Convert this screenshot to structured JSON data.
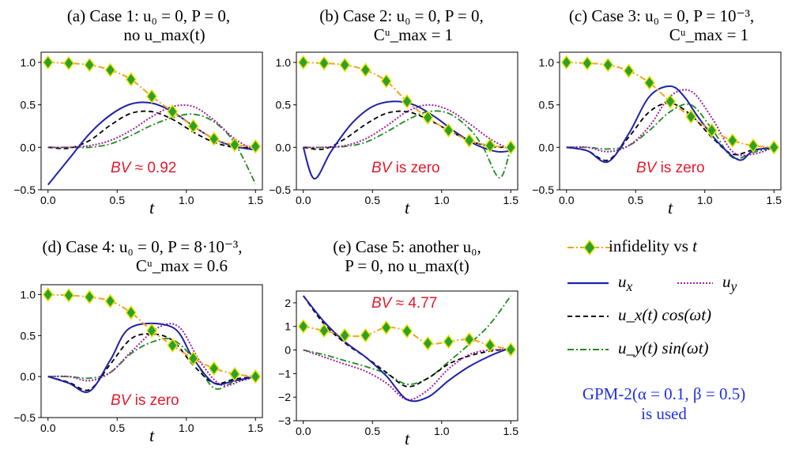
{
  "colors": {
    "infidelity_line": "#f5a21b",
    "infidelity_marker_fill": "#2ca02c",
    "infidelity_marker_stroke": "#e6e600",
    "ux": "#1f22a5",
    "uy": "#a020a0",
    "ux_cos": "#000000",
    "uy_sin": "#1e8c1e",
    "bv_text": "#e6192b",
    "note_text": "#1f2fe6"
  },
  "legend": {
    "infidelity": "infidelity vs",
    "infidelity_var": "t",
    "ux": "u",
    "ux_sub": "x",
    "uy": "u",
    "uy_sub": "y",
    "ux_cos": "u_x(t) cos(ωt)",
    "uy_sin": "u_y(t) sin(ωt)"
  },
  "note": {
    "line1": "GPM-2(α = 0.1, β = 0.5)",
    "line2": "is used"
  },
  "panels": [
    {
      "title_line1": "(a) Case 1: u₀ = 0,  P = 0,",
      "title_line2": "no u_max(t)",
      "bv_label": "BV",
      "bv_text": " ≈ 0.92"
    },
    {
      "title_line1": "(b) Case 2: u₀ = 0,  P = 0,",
      "title_line2": "Cᵘ_max = 1",
      "bv_label": "BV",
      "bv_text": " is zero"
    },
    {
      "title_line1": "(c) Case 3: u₀ = 0,  P = 10⁻³,",
      "title_line2": "Cᵘ_max = 1",
      "bv_label": "BV",
      "bv_text": " is zero"
    },
    {
      "title_line1": "(d) Case 4: u₀ = 0,  P = 8·10⁻³,",
      "title_line2": "Cᵘ_max = 0.6",
      "bv_label": "BV",
      "bv_text": " is zero"
    },
    {
      "title_line1": "(e) Case 5: another u₀,",
      "title_line2": "P = 0, no u_max(t)",
      "bv_label": "BV",
      "bv_text": " ≈ 4.77"
    }
  ],
  "chart_data": [
    {
      "type": "line",
      "xlabel": "t",
      "xlim": [
        -0.05,
        1.55
      ],
      "ylim": [
        -0.5,
        1.12
      ],
      "xticks": [
        0.0,
        0.5,
        1.0,
        1.5
      ],
      "xtick_labels": [
        "0.0",
        "0.5",
        "1.0",
        "1.5"
      ],
      "yticks": [
        -0.5,
        0.0,
        0.5,
        1.0
      ],
      "ytick_labels": [
        "−0.5",
        "0.0",
        "0.5",
        "1.0"
      ],
      "series": [
        {
          "name": "infidelity vs t",
          "x": [
            0,
            0.15,
            0.3,
            0.45,
            0.6,
            0.75,
            0.9,
            1.05,
            1.2,
            1.35,
            1.5
          ],
          "y": [
            1.0,
            0.99,
            0.97,
            0.91,
            0.8,
            0.6,
            0.42,
            0.25,
            0.1,
            0.03,
            0.01
          ]
        },
        {
          "name": "u_x",
          "x": [
            0,
            0.15,
            0.3,
            0.45,
            0.6,
            0.75,
            0.9,
            1.05,
            1.2,
            1.35,
            1.5
          ],
          "y": [
            -0.44,
            -0.14,
            0.16,
            0.38,
            0.51,
            0.52,
            0.42,
            0.25,
            0.1,
            0.01,
            -0.03
          ]
        },
        {
          "name": "u_y",
          "x": [
            0,
            0.15,
            0.3,
            0.45,
            0.6,
            0.75,
            0.9,
            1.05,
            1.2,
            1.35,
            1.5
          ],
          "y": [
            0.0,
            0.0,
            0.02,
            0.08,
            0.2,
            0.36,
            0.48,
            0.48,
            0.32,
            0.1,
            -0.04
          ]
        },
        {
          "name": "u_x(t) cos(ωt)",
          "x": [
            0,
            0.15,
            0.3,
            0.45,
            0.6,
            0.75,
            0.9,
            1.05,
            1.2,
            1.35,
            1.5
          ],
          "y": [
            0.0,
            -0.01,
            0.08,
            0.26,
            0.4,
            0.42,
            0.33,
            0.18,
            0.06,
            0.0,
            0.0
          ]
        },
        {
          "name": "u_y(t) sin(ωt)",
          "x": [
            0,
            0.15,
            0.3,
            0.45,
            0.6,
            0.75,
            0.9,
            1.05,
            1.2,
            1.35,
            1.5
          ],
          "y": [
            0.0,
            0.0,
            0.0,
            0.04,
            0.14,
            0.26,
            0.35,
            0.39,
            0.3,
            0.05,
            -0.43
          ]
        }
      ]
    },
    {
      "type": "line",
      "xlabel": "t",
      "xlim": [
        -0.05,
        1.55
      ],
      "ylim": [
        -0.5,
        1.12
      ],
      "xticks": [
        0.0,
        0.5,
        1.0,
        1.5
      ],
      "xtick_labels": [
        "0.0",
        "0.5",
        "1.0",
        "1.5"
      ],
      "yticks": [
        -0.5,
        0.0,
        0.5,
        1.0
      ],
      "ytick_labels": [
        "−0.5",
        "0.0",
        "0.5",
        "1.0"
      ],
      "series": [
        {
          "name": "infidelity vs t",
          "x": [
            0,
            0.15,
            0.3,
            0.45,
            0.6,
            0.75,
            0.9,
            1.05,
            1.2,
            1.35,
            1.5
          ],
          "y": [
            1.0,
            0.99,
            0.97,
            0.91,
            0.78,
            0.54,
            0.35,
            0.2,
            0.08,
            0.02,
            0.0
          ]
        },
        {
          "name": "u_x",
          "x": [
            0,
            0.08,
            0.2,
            0.35,
            0.5,
            0.65,
            0.8,
            0.95,
            1.1,
            1.25,
            1.4,
            1.5
          ],
          "y": [
            0.0,
            -0.37,
            -0.05,
            0.28,
            0.48,
            0.54,
            0.5,
            0.36,
            0.18,
            0.03,
            -0.05,
            -0.04
          ]
        },
        {
          "name": "u_y",
          "x": [
            0,
            0.15,
            0.3,
            0.45,
            0.6,
            0.75,
            0.9,
            1.05,
            1.2,
            1.35,
            1.5
          ],
          "y": [
            0.0,
            0.0,
            0.02,
            0.1,
            0.25,
            0.42,
            0.5,
            0.44,
            0.28,
            0.1,
            -0.03
          ]
        },
        {
          "name": "u_x(t) cos(ωt)",
          "x": [
            0,
            0.15,
            0.3,
            0.45,
            0.6,
            0.75,
            0.9,
            1.05,
            1.2,
            1.35,
            1.5
          ],
          "y": [
            0.0,
            -0.02,
            0.1,
            0.27,
            0.4,
            0.42,
            0.33,
            0.2,
            0.08,
            0.01,
            0.0
          ]
        },
        {
          "name": "u_y(t) sin(ωt)",
          "x": [
            0,
            0.15,
            0.3,
            0.45,
            0.6,
            0.75,
            0.9,
            1.05,
            1.2,
            1.3,
            1.42,
            1.5
          ],
          "y": [
            0.0,
            0.0,
            0.01,
            0.06,
            0.18,
            0.32,
            0.42,
            0.4,
            0.22,
            0.0,
            -0.36,
            0.0
          ]
        }
      ]
    },
    {
      "type": "line",
      "xlabel": "t",
      "xlim": [
        -0.05,
        1.55
      ],
      "ylim": [
        -0.5,
        1.12
      ],
      "xticks": [
        0.0,
        0.5,
        1.0,
        1.5
      ],
      "xtick_labels": [
        "0.0",
        "0.5",
        "1.0",
        "1.5"
      ],
      "yticks": [
        -0.5,
        0.0,
        0.5,
        1.0
      ],
      "ytick_labels": [
        "−0.5",
        "0.0",
        "0.5",
        "1.0"
      ],
      "series": [
        {
          "name": "infidelity vs t",
          "x": [
            0,
            0.15,
            0.3,
            0.45,
            0.6,
            0.75,
            0.9,
            1.05,
            1.2,
            1.35,
            1.5
          ],
          "y": [
            1.0,
            0.99,
            0.97,
            0.9,
            0.76,
            0.54,
            0.36,
            0.2,
            0.08,
            0.02,
            0.0
          ]
        },
        {
          "name": "u_x",
          "x": [
            0,
            0.15,
            0.3,
            0.45,
            0.6,
            0.75,
            0.85,
            0.95,
            1.1,
            1.25,
            1.35,
            1.5
          ],
          "y": [
            0.0,
            -0.04,
            -0.17,
            0.16,
            0.6,
            0.72,
            0.6,
            0.36,
            0.05,
            -0.15,
            -0.04,
            0.0
          ]
        },
        {
          "name": "u_y",
          "x": [
            0,
            0.15,
            0.3,
            0.45,
            0.6,
            0.75,
            0.9,
            1.05,
            1.2,
            1.35,
            1.5
          ],
          "y": [
            0.0,
            0.0,
            -0.05,
            0.02,
            0.25,
            0.6,
            0.66,
            0.35,
            -0.05,
            -0.08,
            0.0
          ]
        },
        {
          "name": "u_x(t) cos(ωt)",
          "x": [
            0,
            0.15,
            0.3,
            0.45,
            0.6,
            0.75,
            0.9,
            1.05,
            1.2,
            1.35,
            1.5
          ],
          "y": [
            0.0,
            -0.04,
            -0.15,
            0.12,
            0.42,
            0.52,
            0.38,
            0.12,
            -0.08,
            -0.03,
            0.0
          ]
        },
        {
          "name": "u_y(t) sin(ωt)",
          "x": [
            0,
            0.15,
            0.3,
            0.45,
            0.6,
            0.75,
            0.9,
            1.05,
            1.2,
            1.35,
            1.5
          ],
          "y": [
            0.0,
            0.0,
            -0.02,
            0.02,
            0.2,
            0.42,
            0.5,
            0.22,
            -0.12,
            -0.06,
            0.0
          ]
        }
      ]
    },
    {
      "type": "line",
      "xlabel": "t",
      "xlim": [
        -0.05,
        1.55
      ],
      "ylim": [
        -0.5,
        1.12
      ],
      "xticks": [
        0.0,
        0.5,
        1.0,
        1.5
      ],
      "xtick_labels": [
        "0.0",
        "0.5",
        "1.0",
        "1.5"
      ],
      "yticks": [
        -0.5,
        0.0,
        0.5,
        1.0
      ],
      "ytick_labels": [
        "−0.5",
        "0.0",
        "0.5",
        "1.0"
      ],
      "series": [
        {
          "name": "infidelity vs t",
          "x": [
            0,
            0.15,
            0.3,
            0.45,
            0.6,
            0.75,
            0.9,
            1.05,
            1.2,
            1.35,
            1.5
          ],
          "y": [
            1.0,
            0.99,
            0.97,
            0.92,
            0.78,
            0.56,
            0.38,
            0.22,
            0.1,
            0.03,
            0.0
          ]
        },
        {
          "name": "u_x",
          "x": [
            0,
            0.15,
            0.3,
            0.45,
            0.6,
            0.9,
            1.05,
            1.2,
            1.35,
            1.5
          ],
          "y": [
            0.0,
            -0.08,
            -0.18,
            0.2,
            0.6,
            0.6,
            0.22,
            -0.08,
            -0.05,
            0.0
          ]
        },
        {
          "name": "u_y",
          "x": [
            0,
            0.15,
            0.3,
            0.45,
            0.6,
            0.8,
            0.95,
            1.1,
            1.25,
            1.4,
            1.5
          ],
          "y": [
            0.0,
            0.0,
            -0.05,
            0.05,
            0.3,
            0.6,
            0.6,
            0.18,
            -0.1,
            -0.05,
            0.0
          ]
        },
        {
          "name": "u_x(t) cos(ωt)",
          "x": [
            0,
            0.15,
            0.3,
            0.45,
            0.6,
            0.75,
            0.9,
            1.05,
            1.2,
            1.35,
            1.5
          ],
          "y": [
            0.0,
            -0.07,
            -0.16,
            0.15,
            0.46,
            0.52,
            0.44,
            0.14,
            -0.08,
            -0.03,
            0.0
          ]
        },
        {
          "name": "u_y(t) sin(ωt)",
          "x": [
            0,
            0.15,
            0.3,
            0.45,
            0.6,
            0.75,
            0.9,
            1.05,
            1.2,
            1.35,
            1.5
          ],
          "y": [
            0.0,
            0.0,
            -0.02,
            0.05,
            0.28,
            0.42,
            0.45,
            0.22,
            -0.14,
            -0.06,
            0.0
          ]
        }
      ]
    },
    {
      "type": "line",
      "xlabel": "t",
      "xlim": [
        -0.05,
        1.55
      ],
      "ylim": [
        -3.0,
        2.5
      ],
      "xticks": [
        0.0,
        0.5,
        1.0,
        1.5
      ],
      "xtick_labels": [
        "0.0",
        "0.5",
        "1.0",
        "1.5"
      ],
      "yticks": [
        -3,
        -2,
        -1,
        0,
        1,
        2
      ],
      "ytick_labels": [
        "−3",
        "−2",
        "−1",
        "0",
        "1",
        "2"
      ],
      "series": [
        {
          "name": "infidelity vs t",
          "x": [
            0,
            0.15,
            0.3,
            0.45,
            0.6,
            0.75,
            0.9,
            1.05,
            1.2,
            1.35,
            1.5
          ],
          "y": [
            1.0,
            0.82,
            0.62,
            0.62,
            0.95,
            0.8,
            0.28,
            0.35,
            0.45,
            0.2,
            0.02
          ]
        },
        {
          "name": "u_x",
          "x": [
            0,
            0.15,
            0.3,
            0.45,
            0.6,
            0.75,
            0.9,
            1.05,
            1.2,
            1.35,
            1.5
          ],
          "y": [
            2.3,
            1.2,
            0.35,
            -0.3,
            -1.1,
            -2.1,
            -2.0,
            -1.3,
            -0.7,
            -0.25,
            0.1
          ]
        },
        {
          "name": "u_y",
          "x": [
            0,
            0.15,
            0.3,
            0.45,
            0.6,
            0.75,
            0.9,
            1.05,
            1.2,
            1.35,
            1.5
          ],
          "y": [
            0.0,
            -0.3,
            -0.6,
            -0.9,
            -1.4,
            -2.1,
            -1.7,
            -0.8,
            -0.2,
            0.0,
            0.0
          ]
        },
        {
          "name": "u_x(t) cos(ωt)",
          "x": [
            0,
            0.15,
            0.3,
            0.45,
            0.6,
            0.75,
            0.9,
            1.05,
            1.2,
            1.35,
            1.5
          ],
          "y": [
            2.3,
            1.1,
            0.3,
            -0.3,
            -0.95,
            -1.55,
            -1.2,
            -0.6,
            -0.25,
            -0.05,
            0.05
          ]
        },
        {
          "name": "u_y(t) sin(ωt)",
          "x": [
            0,
            0.15,
            0.3,
            0.45,
            0.6,
            0.75,
            0.9,
            1.05,
            1.2,
            1.35,
            1.5
          ],
          "y": [
            0.0,
            -0.2,
            -0.45,
            -0.7,
            -1.0,
            -1.45,
            -1.2,
            -0.5,
            0.25,
            1.1,
            2.3
          ]
        }
      ]
    }
  ]
}
